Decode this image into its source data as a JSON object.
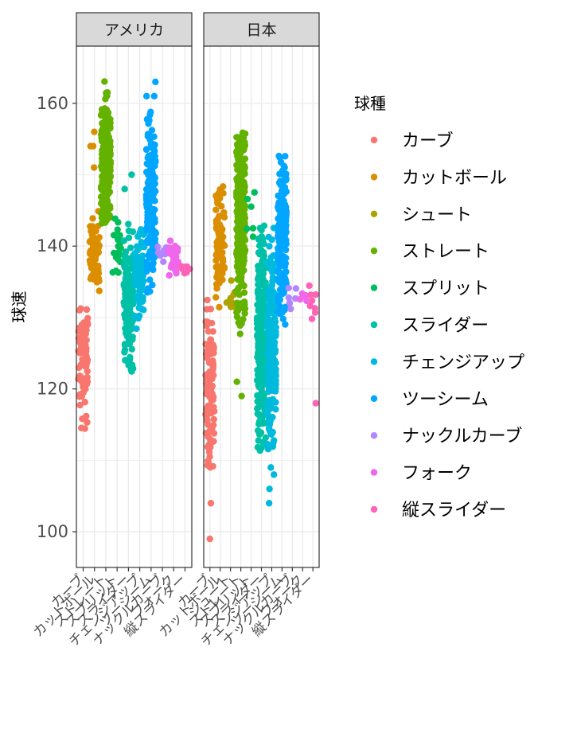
{
  "chart_data": {
    "type": "scatter",
    "style": "jittered strip plot, faceted",
    "facet_var": "country",
    "facets": [
      "アメリカ",
      "日本"
    ],
    "ylabel": "球速",
    "xlabel": "",
    "ylim": [
      95,
      168
    ],
    "yticks": [
      100,
      120,
      140,
      160
    ],
    "grid": true,
    "legend": {
      "title": "球種",
      "position": "right",
      "entries": [
        "カーブ",
        "カットボール",
        "シュート",
        "ストレート",
        "スプリット",
        "スライダー",
        "チェンジアップ",
        "ツーシーム",
        "ナックルカーブ",
        "フォーク",
        "縦スライダー"
      ]
    },
    "colors": {
      "カーブ": "#F8766D",
      "カットボール": "#DB8E00",
      "シュート": "#AEA200",
      "ストレート": "#64B200",
      "スプリット": "#00BD5C",
      "スライダー": "#00C1A7",
      "チェンジアップ": "#00BADE",
      "ツーシーム": "#00A6FF",
      "ナックルカーブ": "#B385FF",
      "フォーク": "#EF67EB",
      "縦スライダー": "#FF63B6"
    },
    "panels": [
      {
        "name": "アメリカ",
        "categories": [
          "カーブ",
          "カットボール",
          "ストレート",
          "スプリット",
          "スライダー",
          "チェンジアップ",
          "ツーシーム",
          "ナックルカーブ",
          "フォーク",
          "縦スライダー"
        ],
        "series": [
          {
            "name": "カーブ",
            "n": 80,
            "min": 114,
            "max": 136,
            "mean": 124,
            "outliers": []
          },
          {
            "name": "カットボール",
            "n": 70,
            "min": 133,
            "max": 146,
            "mean": 139,
            "outliers": [
              151,
              154,
              154,
              156
            ]
          },
          {
            "name": "ストレート",
            "n": 260,
            "min": 143,
            "max": 164,
            "mean": 151,
            "outliers": []
          },
          {
            "name": "スプリット",
            "n": 25,
            "min": 134,
            "max": 144,
            "mean": 140,
            "outliers": []
          },
          {
            "name": "スライダー",
            "n": 130,
            "min": 122,
            "max": 144,
            "mean": 132,
            "outliers": [
              148,
              150
            ]
          },
          {
            "name": "チェンジアップ",
            "n": 90,
            "min": 128,
            "max": 143,
            "mean": 136,
            "outliers": []
          },
          {
            "name": "ツーシーム",
            "n": 190,
            "min": 133,
            "max": 159,
            "mean": 146,
            "outliers": [
              161,
              161,
              163
            ]
          },
          {
            "name": "ナックルカーブ",
            "n": 8,
            "min": 137,
            "max": 140,
            "mean": 139,
            "outliers": []
          },
          {
            "name": "フォーク",
            "n": 35,
            "min": 135,
            "max": 141,
            "mean": 138,
            "outliers": []
          },
          {
            "name": "縦スライダー",
            "n": 8,
            "min": 136,
            "max": 138,
            "mean": 137,
            "outliers": []
          }
        ]
      },
      {
        "name": "日本",
        "categories": [
          "カーブ",
          "カットボール",
          "シュート",
          "ストレート",
          "スプリット",
          "スライダー",
          "チェンジアップ",
          "ツーシーム",
          "ナックルカーブ",
          "フォーク",
          "縦スライダー"
        ],
        "series": [
          {
            "name": "カーブ",
            "n": 100,
            "min": 106,
            "max": 133,
            "mean": 120,
            "outliers": [
              99,
              104
            ]
          },
          {
            "name": "カットボール",
            "n": 80,
            "min": 130,
            "max": 149,
            "mean": 141,
            "outliers": []
          },
          {
            "name": "シュート",
            "n": 10,
            "min": 131,
            "max": 136,
            "mean": 133,
            "outliers": []
          },
          {
            "name": "ストレート",
            "n": 320,
            "min": 127,
            "max": 156,
            "mean": 144,
            "outliers": [
              119,
              121
            ]
          },
          {
            "name": "スプリット",
            "n": 6,
            "min": 137,
            "max": 148,
            "mean": 142,
            "outliers": []
          },
          {
            "name": "スライダー",
            "n": 260,
            "min": 111,
            "max": 143,
            "mean": 128,
            "outliers": []
          },
          {
            "name": "チェンジアップ",
            "n": 200,
            "min": 111,
            "max": 143,
            "mean": 126,
            "outliers": [
              104,
              106,
              108,
              109
            ]
          },
          {
            "name": "ツーシーム",
            "n": 180,
            "min": 129,
            "max": 153,
            "mean": 142,
            "outliers": []
          },
          {
            "name": "ナックルカーブ",
            "n": 6,
            "min": 131,
            "max": 135,
            "mean": 133,
            "outliers": []
          },
          {
            "name": "フォーク",
            "n": 5,
            "min": 131,
            "max": 135,
            "mean": 133,
            "outliers": []
          },
          {
            "name": "縦スライダー",
            "n": 8,
            "min": 129,
            "max": 135,
            "mean": 132,
            "outliers": [
              118
            ]
          }
        ]
      }
    ]
  }
}
